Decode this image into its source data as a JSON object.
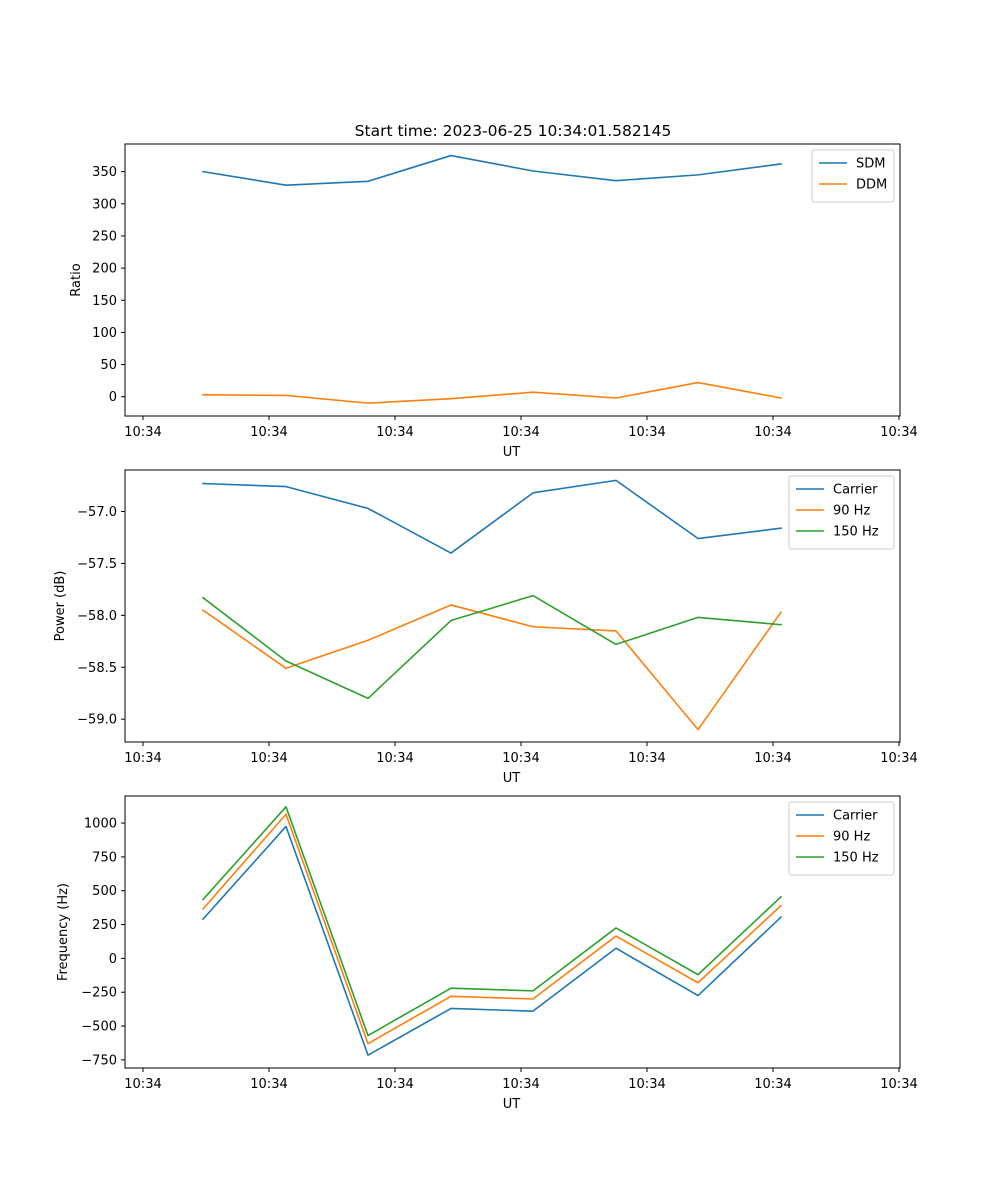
{
  "figure": {
    "title": "Start time: 2023-06-25 10:34:01.582145"
  },
  "chart_data": [
    {
      "type": "line",
      "title": "Start time: 2023-06-25 10:34:01.582145",
      "xlabel": "UT",
      "ylabel": "Ratio",
      "x_tick_labels": [
        "10:34",
        "10:34",
        "10:34",
        "10:34",
        "10:34",
        "10:34",
        "10:34"
      ],
      "y_ticks": [
        0,
        50,
        100,
        150,
        200,
        250,
        300,
        350
      ],
      "ylim": [
        -30,
        393
      ],
      "legend_position": "upper-right",
      "grid": false,
      "series": [
        {
          "name": "SDM",
          "color": "#1f77b4",
          "values": [
            350,
            329,
            335,
            375,
            351,
            336,
            345,
            362
          ]
        },
        {
          "name": "DDM",
          "color": "#ff7f0e",
          "values": [
            3,
            2,
            -10,
            -3,
            7,
            -2,
            22,
            -2
          ]
        }
      ]
    },
    {
      "type": "line",
      "xlabel": "UT",
      "ylabel": "Power (dB)",
      "x_tick_labels": [
        "10:34",
        "10:34",
        "10:34",
        "10:34",
        "10:34",
        "10:34",
        "10:34"
      ],
      "y_ticks": [
        -59.0,
        -58.5,
        -58.0,
        -57.5,
        -57.0
      ],
      "y_tick_labels": [
        "−59.0",
        "−58.5",
        "−58.0",
        "−57.5",
        "−57.0"
      ],
      "ylim": [
        -59.22,
        -56.6
      ],
      "legend_position": "upper-right",
      "grid": false,
      "series": [
        {
          "name": "Carrier",
          "color": "#1f77b4",
          "values": [
            -56.73,
            -56.76,
            -56.97,
            -57.4,
            -56.82,
            -56.7,
            -57.26,
            -57.16
          ]
        },
        {
          "name": "90 Hz",
          "color": "#ff7f0e",
          "values": [
            -57.95,
            -58.51,
            -58.24,
            -57.9,
            -58.11,
            -58.15,
            -59.1,
            -57.97
          ]
        },
        {
          "name": "150 Hz",
          "color": "#2ca02c",
          "values": [
            -57.83,
            -58.44,
            -58.8,
            -58.05,
            -57.81,
            -58.28,
            -58.02,
            -58.09
          ]
        }
      ]
    },
    {
      "type": "line",
      "xlabel": "UT",
      "ylabel": "Frequency (Hz)",
      "x_tick_labels": [
        "10:34",
        "10:34",
        "10:34",
        "10:34",
        "10:34",
        "10:34",
        "10:34"
      ],
      "y_ticks": [
        -750,
        -500,
        -250,
        0,
        250,
        500,
        750,
        1000
      ],
      "y_tick_labels": [
        "−750",
        "−500",
        "−250",
        "0",
        "250",
        "500",
        "750",
        "1000"
      ],
      "ylim": [
        -810,
        1200
      ],
      "legend_position": "upper-right",
      "grid": false,
      "series": [
        {
          "name": "Carrier",
          "color": "#1f77b4",
          "values": [
            290,
            975,
            -715,
            -370,
            -390,
            75,
            -275,
            305
          ]
        },
        {
          "name": "90 Hz",
          "color": "#ff7f0e",
          "values": [
            365,
            1065,
            -630,
            -280,
            -300,
            165,
            -180,
            390
          ]
        },
        {
          "name": "150 Hz",
          "color": "#2ca02c",
          "values": [
            435,
            1120,
            -570,
            -220,
            -240,
            225,
            -120,
            455
          ]
        }
      ]
    }
  ]
}
